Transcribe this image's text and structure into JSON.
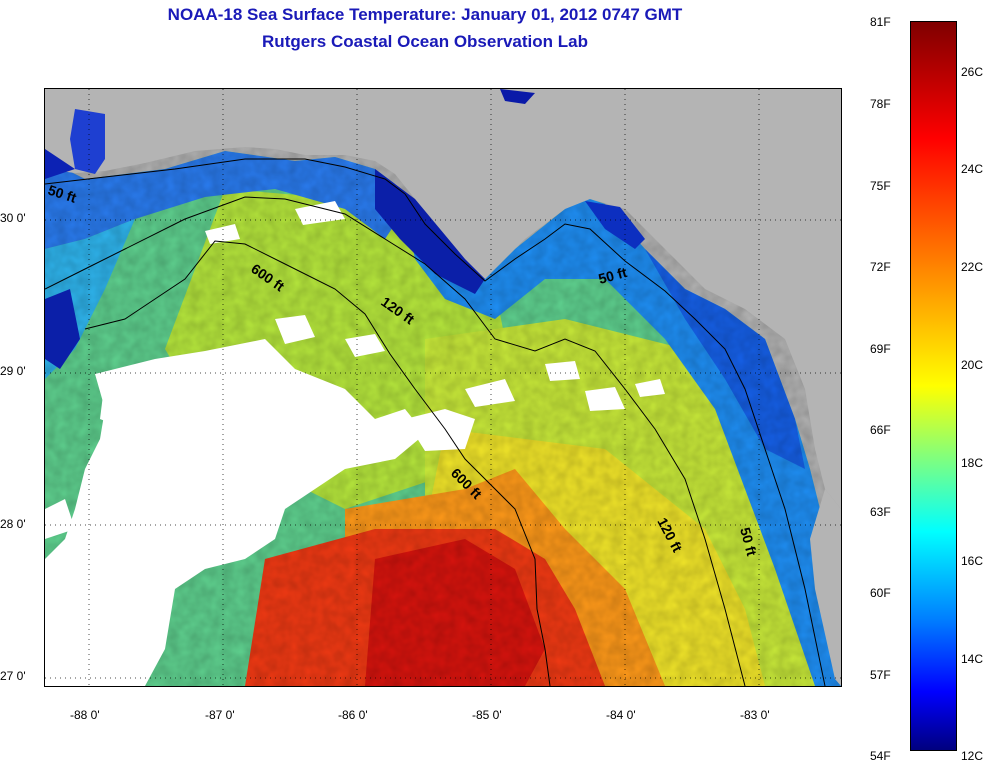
{
  "header": {
    "title": "NOAA-18 Sea Surface Temperature:  January 01, 2012 0747 GMT",
    "subtitle": "Rutgers Coastal Ocean Observation Lab"
  },
  "axes": {
    "lon_ticks": [
      "-88 0'",
      "-87 0'",
      "-86 0'",
      "-85 0'",
      "-84 0'",
      "-83 0'"
    ],
    "lat_ticks": [
      "30 0'",
      "29 0'",
      "28 0'",
      "27 0'"
    ]
  },
  "contours": {
    "labels": [
      "50 ft",
      "600 ft",
      "120 ft",
      "50 ft",
      "600 ft",
      "120 ft",
      "50 ft"
    ]
  },
  "colorbar": {
    "fahrenheit": [
      "81F",
      "78F",
      "75F",
      "72F",
      "69F",
      "66F",
      "63F",
      "60F",
      "57F",
      "54F"
    ],
    "celsius": [
      "26C",
      "24C",
      "22C",
      "20C",
      "18C",
      "16C",
      "14C",
      "12C"
    ]
  },
  "colors": {
    "land": "#b4b4b4",
    "cloud": "#ffffff",
    "title": "#1a1ab8"
  }
}
